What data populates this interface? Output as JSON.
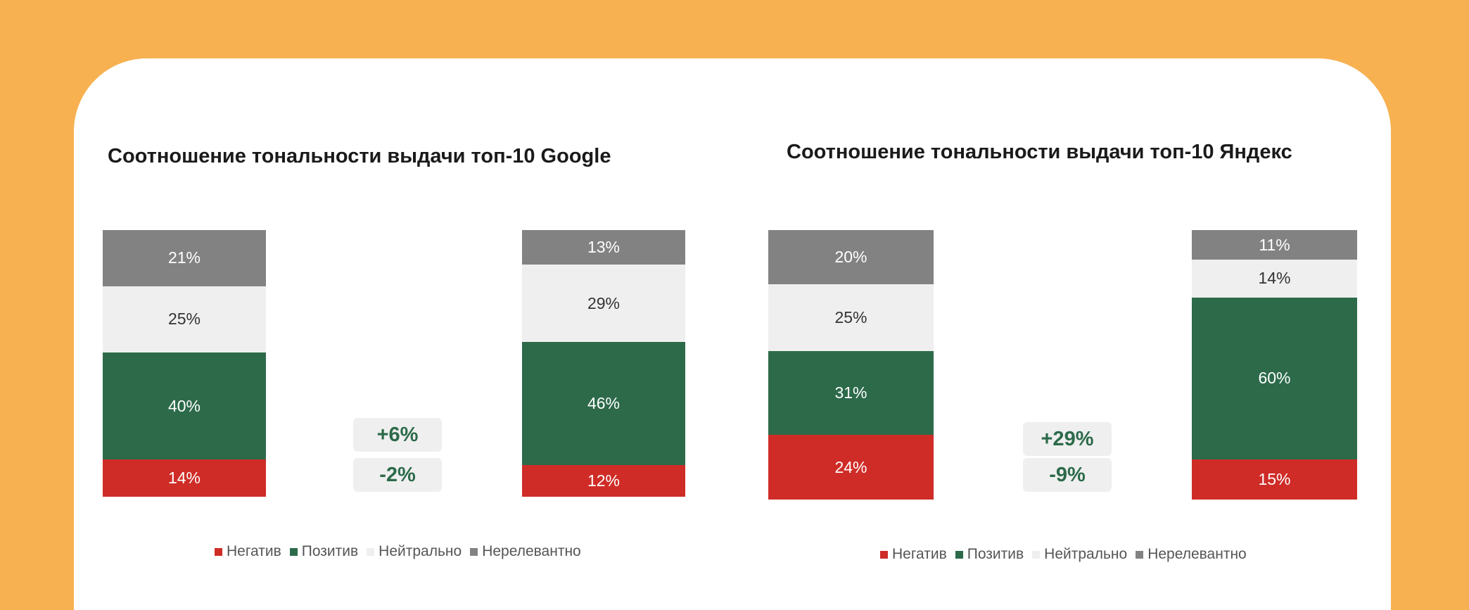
{
  "colors": {
    "background": "#F7B150",
    "card": "#FFFFFF",
    "negative": "#CF2C27",
    "positive": "#2C6A4A",
    "neutral": "#EFEFEF",
    "irrelevant": "#828282",
    "delta_box": "#EFEFEF",
    "delta_text": "#2C6A4A"
  },
  "chart_data": [
    {
      "type": "bar",
      "stacked": true,
      "title": "Соотношение тональности выдачи топ-10 Google",
      "categories": [
        "",
        ""
      ],
      "series": [
        {
          "name": "Негатив",
          "values": [
            14,
            12
          ],
          "labels": [
            "14%",
            "12%"
          ]
        },
        {
          "name": "Позитив",
          "values": [
            40,
            46
          ],
          "labels": [
            "40%",
            "46%"
          ]
        },
        {
          "name": "Нейтрально",
          "values": [
            25,
            29
          ],
          "labels": [
            "25%",
            "29%"
          ]
        },
        {
          "name": "Нерелевантно",
          "values": [
            21,
            13
          ],
          "labels": [
            "21%",
            "13%"
          ]
        }
      ],
      "annotations": [
        "+6%",
        "-2%"
      ],
      "ylim": [
        0,
        100
      ],
      "grid": false,
      "legend_position": "bottom"
    },
    {
      "type": "bar",
      "stacked": true,
      "title": "Соотношение тональности выдачи топ-10 Яндекс",
      "categories": [
        "",
        ""
      ],
      "series": [
        {
          "name": "Негатив",
          "values": [
            24,
            15
          ],
          "labels": [
            "24%",
            "15%"
          ]
        },
        {
          "name": "Позитив",
          "values": [
            31,
            60
          ],
          "labels": [
            "31%",
            "60%"
          ]
        },
        {
          "name": "Нейтрально",
          "values": [
            25,
            14
          ],
          "labels": [
            "25%",
            "14%"
          ]
        },
        {
          "name": "Нерелевантно",
          "values": [
            20,
            11
          ],
          "labels": [
            "20%",
            "11%"
          ]
        }
      ],
      "annotations": [
        "+29%",
        "-9%"
      ],
      "ylim": [
        0,
        100
      ],
      "grid": false,
      "legend_position": "bottom"
    }
  ]
}
